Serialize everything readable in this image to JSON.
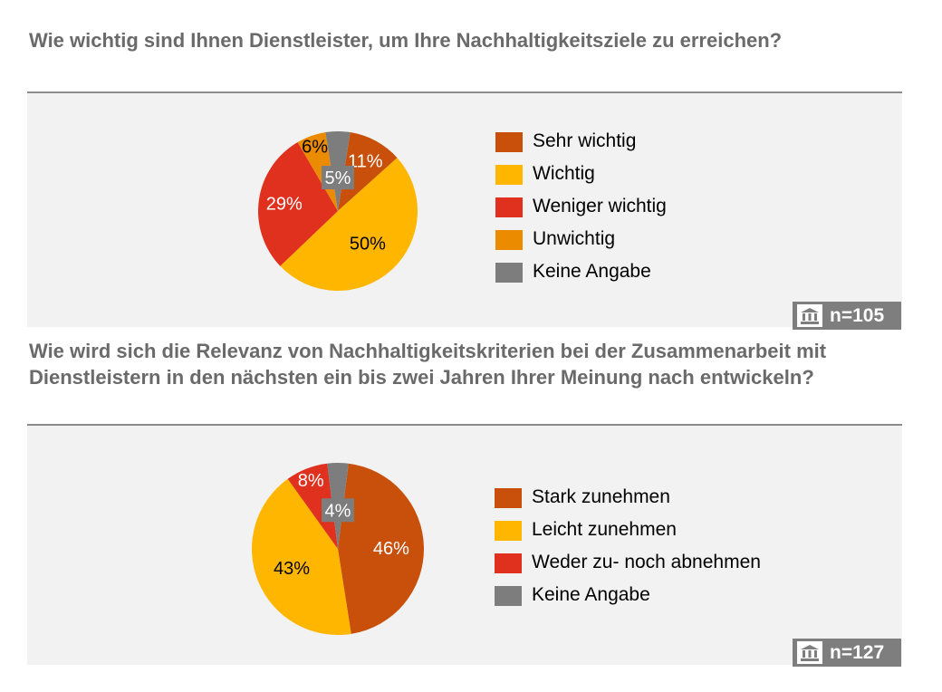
{
  "chart_data": [
    {
      "type": "pie",
      "title": "Wie wichtig sind Ihnen Dienstleister, um Ihre Nachhaltigkeitsziele zu erreichen?",
      "sample_size": "n=105",
      "slices": [
        {
          "label": "Sehr wichtig",
          "value": 11,
          "value_label": "11%",
          "color": "#c8500a"
        },
        {
          "label": "Wichtig",
          "value": 50,
          "value_label": "50%",
          "color": "#ffb600"
        },
        {
          "label": "Weniger wichtig",
          "value": 29,
          "value_label": "29%",
          "color": "#e0301e"
        },
        {
          "label": "Unwichtig",
          "value": 6,
          "value_label": "6%",
          "color": "#eb8c00"
        },
        {
          "label": "Keine Angabe",
          "value": 5,
          "value_label": "5%",
          "color": "#7d7d7d"
        }
      ],
      "legend": [
        "Sehr wichtig",
        "Wichtig",
        "Weniger wichtig",
        "Unwichtig",
        "Keine Angabe"
      ],
      "legend_position": "right"
    },
    {
      "type": "pie",
      "title": "Wie wird sich die Relevanz von Nachhaltigkeitskriterien bei der Zusammenarbeit mit Dienstleistern in den nächsten ein bis zwei Jahren Ihrer Meinung nach entwickeln?",
      "sample_size": "n=127",
      "slices": [
        {
          "label": "Stark zunehmen",
          "value": 46,
          "value_label": "46%",
          "color": "#c8500a"
        },
        {
          "label": "Leicht zunehmen",
          "value": 43,
          "value_label": "43%",
          "color": "#ffb600"
        },
        {
          "label": "Weder zu- noch abnehmen",
          "value": 8,
          "value_label": "8%",
          "color": "#e0301e"
        },
        {
          "label": "Keine Angabe",
          "value": 4,
          "value_label": "4%",
          "color": "#7d7d7d"
        }
      ],
      "legend": [
        "Stark zunehmen",
        "Leicht zunehmen",
        "Weder zu- noch abnehmen",
        "Keine Angabe"
      ],
      "legend_position": "right"
    }
  ],
  "badge_icon": "institution-icon"
}
